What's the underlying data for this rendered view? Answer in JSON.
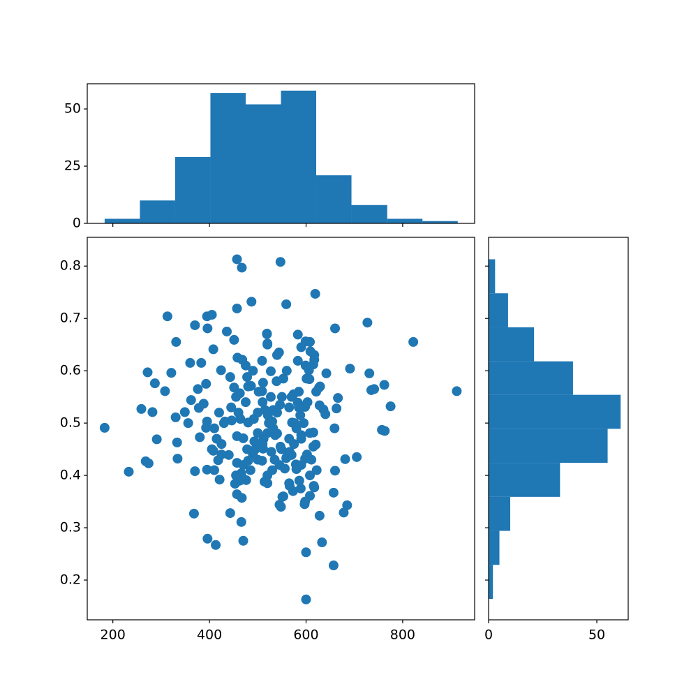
{
  "chart_data": [
    {
      "type": "scatter",
      "color": "#1f77b4",
      "x": [
        183,
        233,
        268,
        274,
        313,
        331,
        272,
        287,
        308,
        321,
        259,
        282,
        291,
        334,
        333,
        330,
        349,
        356,
        360,
        370,
        368,
        370,
        383,
        376,
        362,
        378,
        388,
        393,
        395,
        405,
        396,
        408,
        395,
        380,
        393,
        395,
        396,
        413,
        408,
        425,
        418,
        421,
        432,
        424,
        436,
        457,
        467,
        457,
        487,
        443,
        466,
        470,
        467,
        457,
        451,
        458,
        468,
        443,
        451,
        463,
        475,
        486,
        478,
        446,
        464,
        480,
        492,
        457,
        470,
        440,
        457,
        480,
        466,
        476,
        453,
        509,
        519,
        520,
        532,
        511,
        527,
        509,
        500,
        520,
        511,
        530,
        509,
        514,
        520,
        544,
        547,
        559,
        539,
        553,
        546,
        536,
        545,
        551,
        547,
        559,
        565,
        570,
        574,
        583,
        583,
        599,
        615,
        607,
        627,
        609,
        571,
        583,
        598,
        590,
        608,
        615,
        598,
        579,
        589,
        608,
        597,
        616,
        619,
        660,
        727,
        822,
        912,
        691,
        731,
        735,
        741,
        762,
        775,
        757,
        763,
        705,
        681,
        685,
        678,
        660,
        657,
        657,
        633,
        628,
        600,
        600,
        617,
        622,
        611,
        620,
        615,
        636,
        640,
        628,
        666,
        663,
        659,
        642,
        617,
        617,
        629,
        621,
        601,
        590,
        608,
        606,
        599,
        585,
        588,
        603,
        570,
        576,
        580,
        560,
        566,
        590,
        602,
        608,
        598,
        586,
        573,
        566,
        580,
        556,
        545,
        548,
        553,
        540,
        532,
        521,
        523,
        512,
        510,
        495,
        500,
        490,
        493,
        528,
        535,
        540,
        527,
        560,
        540,
        520,
        519,
        490,
        475,
        480,
        500,
        510,
        515,
        502,
        460,
        455,
        445,
        430,
        420,
        410,
        415,
        425,
        410,
        405,
        470,
        478,
        485,
        463,
        455,
        520,
        530,
        549,
        565,
        575,
        590,
        595,
        585,
        565,
        550
      ],
      "values": [
        0.491,
        0.407,
        0.427,
        0.423,
        0.704,
        0.655,
        0.597,
        0.576,
        0.561,
        0.596,
        0.527,
        0.521,
        0.469,
        0.432,
        0.463,
        0.511,
        0.521,
        0.5,
        0.615,
        0.687,
        0.327,
        0.408,
        0.615,
        0.565,
        0.544,
        0.529,
        0.537,
        0.575,
        0.704,
        0.707,
        0.681,
        0.641,
        0.503,
        0.473,
        0.491,
        0.411,
        0.279,
        0.267,
        0.447,
        0.46,
        0.429,
        0.392,
        0.503,
        0.601,
        0.675,
        0.813,
        0.797,
        0.719,
        0.732,
        0.328,
        0.311,
        0.275,
        0.357,
        0.364,
        0.659,
        0.625,
        0.621,
        0.588,
        0.568,
        0.557,
        0.54,
        0.571,
        0.588,
        0.505,
        0.508,
        0.501,
        0.508,
        0.475,
        0.471,
        0.439,
        0.424,
        0.428,
        0.404,
        0.391,
        0.384,
        0.619,
        0.671,
        0.652,
        0.525,
        0.577,
        0.599,
        0.561,
        0.481,
        0.481,
        0.451,
        0.503,
        0.428,
        0.388,
        0.385,
        0.635,
        0.808,
        0.727,
        0.58,
        0.585,
        0.535,
        0.477,
        0.344,
        0.359,
        0.455,
        0.433,
        0.385,
        0.439,
        0.555,
        0.669,
        0.619,
        0.656,
        0.612,
        0.584,
        0.568,
        0.637,
        0.501,
        0.539,
        0.531,
        0.477,
        0.481,
        0.455,
        0.432,
        0.421,
        0.375,
        0.361,
        0.345,
        0.38,
        0.747,
        0.681,
        0.692,
        0.655,
        0.561,
        0.604,
        0.595,
        0.563,
        0.565,
        0.573,
        0.532,
        0.487,
        0.485,
        0.435,
        0.431,
        0.343,
        0.329,
        0.409,
        0.367,
        0.228,
        0.272,
        0.323,
        0.253,
        0.163,
        0.377,
        0.41,
        0.43,
        0.459,
        0.482,
        0.526,
        0.517,
        0.534,
        0.548,
        0.528,
        0.49,
        0.595,
        0.63,
        0.621,
        0.57,
        0.56,
        0.585,
        0.645,
        0.655,
        0.601,
        0.61,
        0.53,
        0.515,
        0.54,
        0.55,
        0.5,
        0.49,
        0.435,
        0.445,
        0.42,
        0.44,
        0.4,
        0.35,
        0.39,
        0.37,
        0.38,
        0.412,
        0.413,
        0.42,
        0.34,
        0.36,
        0.48,
        0.49,
        0.515,
        0.5,
        0.47,
        0.46,
        0.45,
        0.43,
        0.44,
        0.465,
        0.445,
        0.43,
        0.52,
        0.55,
        0.6,
        0.63,
        0.65,
        0.67,
        0.6,
        0.61,
        0.57,
        0.52,
        0.54,
        0.525,
        0.56,
        0.52,
        0.55,
        0.53,
        0.5,
        0.52,
        0.49,
        0.47,
        0.44,
        0.41,
        0.45,
        0.42,
        0.45,
        0.41,
        0.39,
        0.4,
        0.4,
        0.41,
        0.45,
        0.47,
        0.46,
        0.47,
        0.5,
        0.56,
        0.53,
        0.55
      ],
      "xlim": [
        147,
        949
      ],
      "ylim": [
        0.124,
        0.855
      ],
      "xticks": [
        200,
        400,
        600,
        800
      ],
      "yticks": [
        0.2,
        0.3,
        0.4,
        0.5,
        0.6,
        0.7,
        0.8
      ]
    },
    {
      "type": "histogram",
      "color": "#1f77b4",
      "bins": [
        183,
        256,
        329,
        402,
        475,
        548,
        621,
        694,
        768,
        841,
        914
      ],
      "values": [
        2,
        10,
        29,
        57,
        52,
        58,
        21,
        8,
        2,
        1
      ],
      "xlim": [
        147,
        949
      ],
      "ylim": [
        0,
        61
      ],
      "yticks": [
        0,
        25,
        50
      ]
    },
    {
      "type": "histogram",
      "orientation": "horizontal",
      "color": "#1f77b4",
      "bins": [
        0.164,
        0.229,
        0.294,
        0.359,
        0.424,
        0.489,
        0.554,
        0.618,
        0.683,
        0.748,
        0.813
      ],
      "values": [
        2,
        5,
        10,
        33,
        55,
        61,
        39,
        21,
        9,
        3
      ],
      "xlim": [
        0,
        64.5
      ],
      "ylim": [
        0.124,
        0.855
      ],
      "xticks": [
        0,
        50
      ]
    }
  ]
}
